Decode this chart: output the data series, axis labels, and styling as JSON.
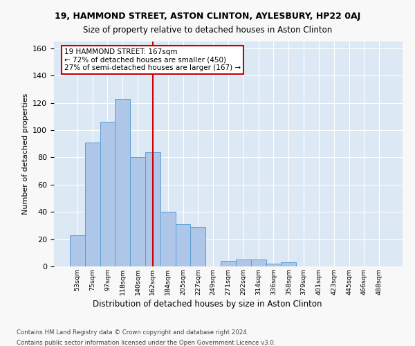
{
  "title1": "19, HAMMOND STREET, ASTON CLINTON, AYLESBURY, HP22 0AJ",
  "title2": "Size of property relative to detached houses in Aston Clinton",
  "xlabel": "Distribution of detached houses by size in Aston Clinton",
  "ylabel": "Number of detached properties",
  "bin_labels": [
    "53sqm",
    "75sqm",
    "97sqm",
    "118sqm",
    "140sqm",
    "162sqm",
    "184sqm",
    "205sqm",
    "227sqm",
    "249sqm",
    "271sqm",
    "292sqm",
    "314sqm",
    "336sqm",
    "358sqm",
    "379sqm",
    "401sqm",
    "423sqm",
    "445sqm",
    "466sqm",
    "488sqm"
  ],
  "bar_values": [
    23,
    91,
    106,
    123,
    80,
    84,
    40,
    31,
    29,
    0,
    4,
    5,
    5,
    2,
    3,
    0,
    0,
    0,
    0,
    0,
    0
  ],
  "bar_color": "#aec6e8",
  "bar_edge_color": "#5a9fd4",
  "highlight_line_color": "#cc0000",
  "annotation_text": "19 HAMMOND STREET: 167sqm\n← 72% of detached houses are smaller (450)\n27% of semi-detached houses are larger (167) →",
  "annotation_box_color": "#ffffff",
  "annotation_box_edge": "#cc0000",
  "ylim": [
    0,
    165
  ],
  "yticks": [
    0,
    20,
    40,
    60,
    80,
    100,
    120,
    140,
    160
  ],
  "background_color": "#dde8f5",
  "fig_bg_color": "#f8f8f8",
  "footer1": "Contains HM Land Registry data © Crown copyright and database right 2024.",
  "footer2": "Contains public sector information licensed under the Open Government Licence v3.0."
}
